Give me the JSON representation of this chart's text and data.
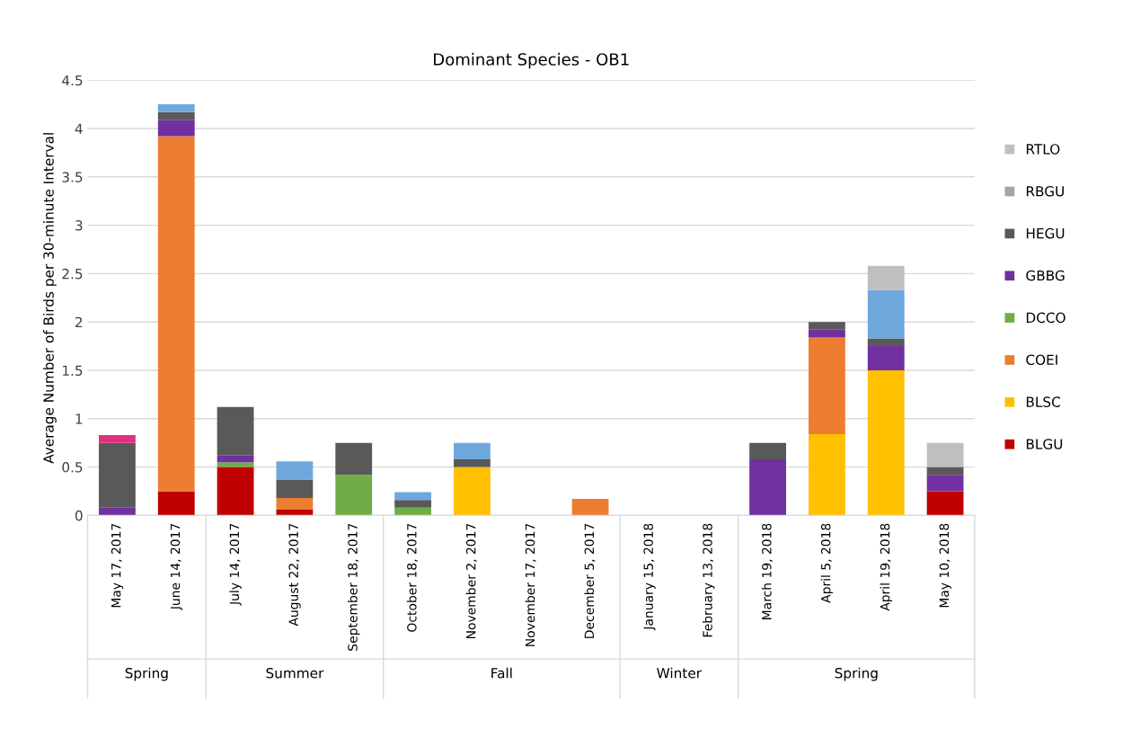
{
  "chart_data": {
    "type": "bar",
    "title": "Dominant Species - OB1",
    "ylabel": "Average Number of Birds per 30-minute Interval",
    "categories": [
      "May 17, 2017",
      "June 14, 2017",
      "July 14, 2017",
      "August 22, 2017",
      "September 18, 2017",
      "October 18, 2017",
      "November 2, 2017",
      "November 17, 2017",
      "December 5, 2017",
      "January 15, 2018",
      "February 13, 2018",
      "March 19, 2018",
      "April 5, 2018",
      "April 19, 2018",
      "May 10, 2018"
    ],
    "stacked": true,
    "series": [
      {
        "name": "BLGU",
        "color": "#c00000",
        "values": [
          0,
          0.25,
          0.5,
          0.06,
          0,
          0,
          0,
          0,
          0,
          0,
          0,
          0,
          0,
          0,
          0.25
        ]
      },
      {
        "name": "BLSC",
        "color": "#ffc000",
        "values": [
          0,
          0,
          0,
          0,
          0,
          0,
          0.5,
          0,
          0,
          0,
          0,
          0,
          0.84,
          1.5,
          0
        ]
      },
      {
        "name": "COEI",
        "color": "#ed7d31",
        "values": [
          0,
          3.67,
          0,
          0.12,
          0,
          0,
          0,
          0,
          0.17,
          0,
          0,
          0,
          1.0,
          0,
          0
        ]
      },
      {
        "name": "DCCO",
        "color": "#70ad47",
        "values": [
          0,
          0,
          0.05,
          0,
          0.42,
          0.08,
          0,
          0,
          0,
          0,
          0,
          0,
          0,
          0,
          0
        ]
      },
      {
        "name": "GBBG",
        "color": "#7030a0",
        "values": [
          0.08,
          0.17,
          0.07,
          0,
          0,
          0,
          0,
          0,
          0,
          0,
          0,
          0.58,
          0.08,
          0.25,
          0.17
        ]
      },
      {
        "name": "HEGU",
        "color": "#595959",
        "values": [
          0.67,
          0.08,
          0.5,
          0.19,
          0.33,
          0.08,
          0.08,
          0,
          0,
          0,
          0,
          0.17,
          0.08,
          0.08,
          0.08
        ]
      },
      {
        "color": "#6fa8dc",
        "values": [
          0,
          0.08,
          0,
          0.19,
          0,
          0.08,
          0.17,
          0,
          0,
          0,
          0,
          0,
          0,
          0.5,
          0
        ]
      },
      {
        "color": "#e0307f",
        "values": [
          0.08,
          0,
          0,
          0,
          0,
          0,
          0,
          0,
          0,
          0,
          0,
          0,
          0,
          0,
          0
        ]
      },
      {
        "name": "RBGU",
        "color": "#a5a5a5",
        "values": [
          0,
          0,
          0,
          0,
          0,
          0,
          0,
          0,
          0,
          0,
          0,
          0,
          0,
          0,
          0
        ]
      },
      {
        "name": "RTLO",
        "color": "#bfbfbf",
        "values": [
          0,
          0,
          0,
          0,
          0,
          0,
          0,
          0,
          0,
          0,
          0,
          0,
          0,
          0.25,
          0.25
        ]
      }
    ],
    "ylim": [
      0,
      4.5
    ],
    "yticks": [
      0,
      0.5,
      1,
      1.5,
      2,
      2.5,
      3,
      3.5,
      4,
      4.5
    ],
    "grid": "y",
    "legend": "right",
    "annotations": [
      "Spring",
      "Summer",
      "Fall",
      "Winter",
      "Spring"
    ]
  }
}
